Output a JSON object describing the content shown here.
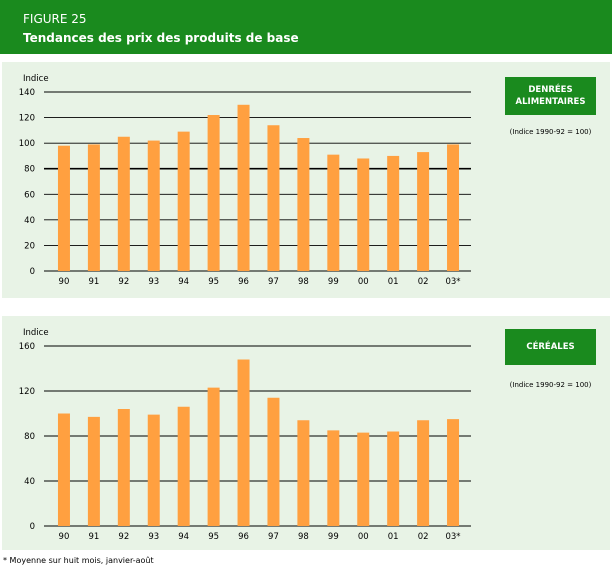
{
  "header": {
    "figure": "FIGURE 25",
    "title": "Tendances des prix des produits de base"
  },
  "footnote": "* Moyenne sur huit mois, janvier-août",
  "colors": {
    "bar": "#ffa040",
    "header": "#1a8a1e",
    "panel": "#e8f3e6"
  },
  "chart_data": [
    {
      "type": "bar",
      "title": "DENRÉES ALIMENTAIRES",
      "note": "(Indice 1990-92 = 100)",
      "ylabel": "Indice",
      "ylim": [
        0,
        140
      ],
      "yticks": [
        0,
        20,
        40,
        60,
        80,
        100,
        120,
        140
      ],
      "categories": [
        "90",
        "91",
        "92",
        "93",
        "94",
        "95",
        "96",
        "97",
        "98",
        "99",
        "00",
        "01",
        "02",
        "03*"
      ],
      "values": [
        98,
        99,
        105,
        102,
        109,
        122,
        130,
        114,
        104,
        91,
        88,
        90,
        93,
        99
      ]
    },
    {
      "type": "bar",
      "title": "CÉRÉALES",
      "note": "(Indice 1990-92 = 100)",
      "ylabel": "Indice",
      "ylim": [
        0,
        160
      ],
      "yticks": [
        0,
        40,
        80,
        120,
        160
      ],
      "categories": [
        "90",
        "91",
        "92",
        "93",
        "94",
        "95",
        "96",
        "97",
        "98",
        "99",
        "00",
        "01",
        "02",
        "03*"
      ],
      "values": [
        100,
        97,
        104,
        99,
        106,
        123,
        148,
        114,
        94,
        85,
        83,
        84,
        94,
        95
      ]
    }
  ]
}
